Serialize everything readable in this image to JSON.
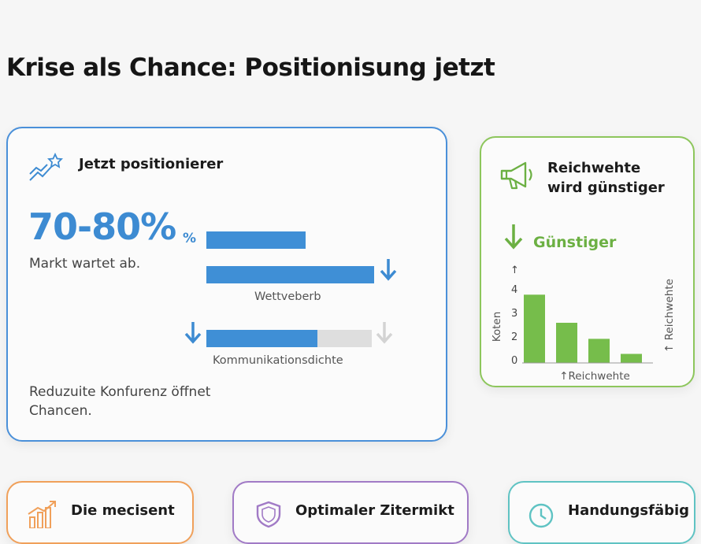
{
  "page": {
    "title": "Krise als Chance: Positionisung jetzt"
  },
  "main_card": {
    "title": "Jetzt positionierer",
    "icon": "trend-star-icon",
    "stat": "70-80%",
    "stat_suffix": "%",
    "stat_caption": "Markt wartet ab.",
    "bars": [
      {
        "label": "Wettveberb",
        "value": 0.6,
        "trend": "down"
      },
      {
        "label": "Kommunikationsdichte",
        "value": 0.67,
        "trend": "down"
      }
    ],
    "footer": "Reduzuite Konfurenz öffnet Chancen.",
    "accent": "#3d8bd2"
  },
  "reach_card": {
    "title_line1": "Reichwehte",
    "title_line2": "wird günstiger",
    "icon": "megaphone-icon",
    "trend_label": "Günstiger",
    "accent": "#6cb043",
    "chart_data": {
      "type": "bar",
      "values": [
        3.4,
        2.0,
        1.2,
        0.45
      ],
      "ylabel": "Koten",
      "xlabel": "↑Reichwehte",
      "right_label": "↑ Reichwehte",
      "yticks": [
        "0",
        "2",
        "3",
        "4"
      ],
      "ylim": [
        0,
        4
      ],
      "y_arrow": "↑"
    }
  },
  "bottom_cards": [
    {
      "title": "Die mecisent",
      "icon": "growth-chart-icon",
      "accent": "#f0a05a"
    },
    {
      "title": "Optimaler Zitermikt",
      "icon": "shield-icon",
      "accent": "#a17ac6"
    },
    {
      "title": "Handungsfäbig",
      "icon": "clock-icon",
      "accent": "#5fc3c3"
    }
  ]
}
